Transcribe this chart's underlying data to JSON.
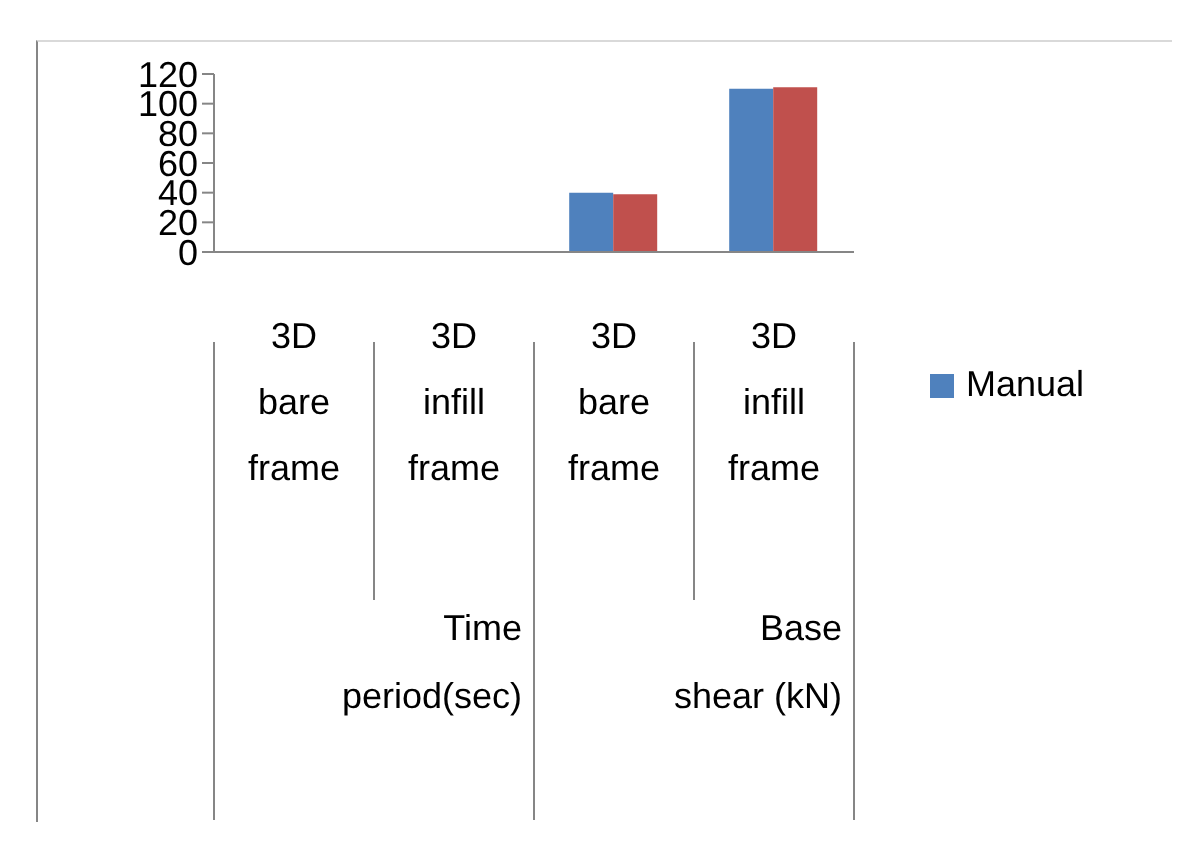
{
  "chart_data": {
    "type": "bar",
    "categories": [
      "3D bare frame",
      "3D infill frame",
      "3D bare frame",
      "3D infill frame"
    ],
    "series": [
      {
        "name": "Manual",
        "color": "#4f81bd",
        "values": [
          0,
          0,
          40,
          110
        ]
      },
      {
        "color": "#c0504d",
        "values": [
          0,
          0,
          39,
          111
        ]
      }
    ],
    "ylim": [
      0,
      120
    ],
    "yticks": [
      0,
      20,
      40,
      60,
      80,
      100,
      120
    ],
    "legend": "right",
    "annotations": [
      "Time period(sec)",
      "Base shear (kN)"
    ]
  }
}
